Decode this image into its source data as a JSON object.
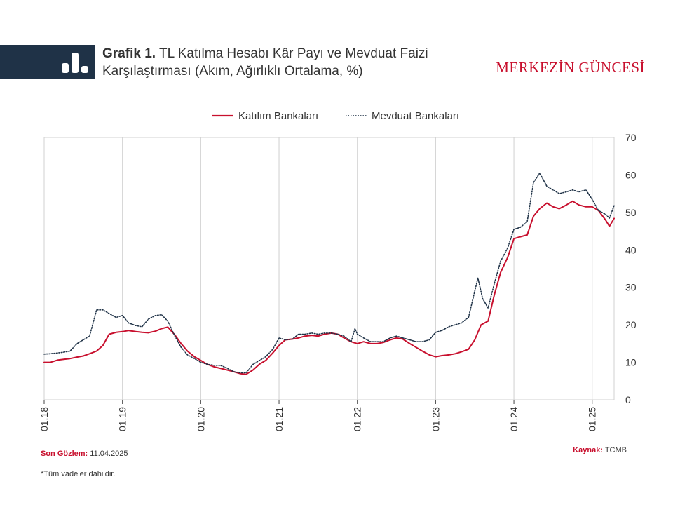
{
  "header": {
    "title_prefix": "Grafik 1.",
    "title_text": "TL Katılma Hesabı Kâr Payı ve Mevduat Faizi Karşılaştırması (Akım, Ağırlıklı Ortalama, %)",
    "brand": "MERKEZİN GÜNCESİ",
    "band_color": "#1f3247",
    "accent_color": "#c8102e"
  },
  "chart_data": {
    "type": "line",
    "title": "",
    "xlabel": "",
    "ylabel": "",
    "x_tick_labels": [
      "01.18",
      "01.19",
      "01.20",
      "01.21",
      "01.22",
      "01.23",
      "01.24",
      "01.25"
    ],
    "x_range": [
      2018.0,
      2025.28
    ],
    "ylim": [
      0,
      70
    ],
    "y_ticks": [
      0,
      10,
      20,
      30,
      40,
      50,
      60,
      70
    ],
    "y_axis_side": "right",
    "grid": "vertical",
    "legend_position": "top-center",
    "series": [
      {
        "name": "Katılım Bankaları",
        "color": "#c8102e",
        "style": "solid",
        "points": [
          [
            2018.0,
            10.0
          ],
          [
            2018.08,
            10.0
          ],
          [
            2018.17,
            10.6
          ],
          [
            2018.25,
            10.8
          ],
          [
            2018.33,
            11.0
          ],
          [
            2018.42,
            11.4
          ],
          [
            2018.5,
            11.7
          ],
          [
            2018.58,
            12.3
          ],
          [
            2018.67,
            13.0
          ],
          [
            2018.75,
            14.5
          ],
          [
            2018.83,
            17.5
          ],
          [
            2018.92,
            18.0
          ],
          [
            2019.0,
            18.2
          ],
          [
            2019.08,
            18.5
          ],
          [
            2019.17,
            18.2
          ],
          [
            2019.25,
            18.0
          ],
          [
            2019.33,
            17.9
          ],
          [
            2019.42,
            18.3
          ],
          [
            2019.5,
            19.0
          ],
          [
            2019.58,
            19.4
          ],
          [
            2019.67,
            17.3
          ],
          [
            2019.75,
            15.0
          ],
          [
            2019.83,
            13.0
          ],
          [
            2019.92,
            11.5
          ],
          [
            2020.0,
            10.5
          ],
          [
            2020.08,
            9.5
          ],
          [
            2020.17,
            8.8
          ],
          [
            2020.25,
            8.4
          ],
          [
            2020.33,
            8.0
          ],
          [
            2020.42,
            7.5
          ],
          [
            2020.5,
            7.0
          ],
          [
            2020.58,
            6.8
          ],
          [
            2020.67,
            8.0
          ],
          [
            2020.75,
            9.5
          ],
          [
            2020.83,
            10.5
          ],
          [
            2020.92,
            12.5
          ],
          [
            2021.0,
            14.5
          ],
          [
            2021.08,
            16.0
          ],
          [
            2021.17,
            16.2
          ],
          [
            2021.25,
            16.5
          ],
          [
            2021.33,
            17.0
          ],
          [
            2021.42,
            17.2
          ],
          [
            2021.5,
            17.0
          ],
          [
            2021.58,
            17.5
          ],
          [
            2021.67,
            17.8
          ],
          [
            2021.75,
            17.5
          ],
          [
            2021.83,
            16.5
          ],
          [
            2021.92,
            15.5
          ],
          [
            2022.0,
            15.0
          ],
          [
            2022.08,
            15.5
          ],
          [
            2022.17,
            15.0
          ],
          [
            2022.25,
            15.0
          ],
          [
            2022.33,
            15.3
          ],
          [
            2022.42,
            16.0
          ],
          [
            2022.5,
            16.5
          ],
          [
            2022.58,
            16.2
          ],
          [
            2022.67,
            15.0
          ],
          [
            2022.75,
            14.0
          ],
          [
            2022.83,
            13.0
          ],
          [
            2022.92,
            12.0
          ],
          [
            2023.0,
            11.5
          ],
          [
            2023.08,
            11.8
          ],
          [
            2023.17,
            12.0
          ],
          [
            2023.25,
            12.3
          ],
          [
            2023.33,
            12.8
          ],
          [
            2023.42,
            13.5
          ],
          [
            2023.5,
            16.0
          ],
          [
            2023.58,
            20.0
          ],
          [
            2023.67,
            21.0
          ],
          [
            2023.75,
            28.0
          ],
          [
            2023.83,
            34.0
          ],
          [
            2023.92,
            38.0
          ],
          [
            2024.0,
            43.0
          ],
          [
            2024.08,
            43.5
          ],
          [
            2024.17,
            44.0
          ],
          [
            2024.25,
            49.0
          ],
          [
            2024.33,
            51.0
          ],
          [
            2024.42,
            52.5
          ],
          [
            2024.5,
            51.5
          ],
          [
            2024.58,
            51.0
          ],
          [
            2024.67,
            52.0
          ],
          [
            2024.75,
            53.0
          ],
          [
            2024.83,
            52.0
          ],
          [
            2024.92,
            51.5
          ],
          [
            2025.0,
            51.5
          ],
          [
            2025.08,
            50.5
          ],
          [
            2025.17,
            48.0
          ],
          [
            2025.22,
            46.3
          ],
          [
            2025.28,
            48.4
          ]
        ]
      },
      {
        "name": "Mevduat Bankaları",
        "color": "#1f3247",
        "style": "dotted",
        "points": [
          [
            2018.0,
            12.2
          ],
          [
            2018.08,
            12.3
          ],
          [
            2018.17,
            12.5
          ],
          [
            2018.25,
            12.7
          ],
          [
            2018.33,
            13.0
          ],
          [
            2018.42,
            15.0
          ],
          [
            2018.5,
            16.0
          ],
          [
            2018.58,
            17.0
          ],
          [
            2018.67,
            24.0
          ],
          [
            2018.75,
            24.0
          ],
          [
            2018.83,
            23.0
          ],
          [
            2018.92,
            22.0
          ],
          [
            2019.0,
            22.5
          ],
          [
            2019.08,
            20.5
          ],
          [
            2019.17,
            19.8
          ],
          [
            2019.25,
            19.5
          ],
          [
            2019.33,
            21.5
          ],
          [
            2019.42,
            22.5
          ],
          [
            2019.5,
            22.7
          ],
          [
            2019.58,
            21.0
          ],
          [
            2019.67,
            17.0
          ],
          [
            2019.75,
            14.0
          ],
          [
            2019.83,
            12.0
          ],
          [
            2019.92,
            11.0
          ],
          [
            2020.0,
            10.0
          ],
          [
            2020.08,
            9.5
          ],
          [
            2020.17,
            9.2
          ],
          [
            2020.25,
            9.2
          ],
          [
            2020.33,
            8.5
          ],
          [
            2020.42,
            7.5
          ],
          [
            2020.5,
            7.2
          ],
          [
            2020.58,
            7.2
          ],
          [
            2020.67,
            9.5
          ],
          [
            2020.75,
            10.5
          ],
          [
            2020.83,
            11.5
          ],
          [
            2020.92,
            13.5
          ],
          [
            2021.0,
            16.5
          ],
          [
            2021.08,
            16.0
          ],
          [
            2021.17,
            16.2
          ],
          [
            2021.25,
            17.5
          ],
          [
            2021.33,
            17.5
          ],
          [
            2021.42,
            17.8
          ],
          [
            2021.5,
            17.5
          ],
          [
            2021.58,
            17.8
          ],
          [
            2021.67,
            17.8
          ],
          [
            2021.75,
            17.5
          ],
          [
            2021.83,
            17.0
          ],
          [
            2021.92,
            15.5
          ],
          [
            2021.97,
            19.0
          ],
          [
            2022.0,
            17.5
          ],
          [
            2022.08,
            16.5
          ],
          [
            2022.17,
            15.5
          ],
          [
            2022.25,
            15.5
          ],
          [
            2022.33,
            15.5
          ],
          [
            2022.42,
            16.5
          ],
          [
            2022.5,
            17.0
          ],
          [
            2022.58,
            16.5
          ],
          [
            2022.67,
            16.0
          ],
          [
            2022.75,
            15.5
          ],
          [
            2022.83,
            15.5
          ],
          [
            2022.92,
            16.0
          ],
          [
            2023.0,
            18.0
          ],
          [
            2023.08,
            18.5
          ],
          [
            2023.17,
            19.5
          ],
          [
            2023.25,
            20.0
          ],
          [
            2023.33,
            20.5
          ],
          [
            2023.42,
            22.0
          ],
          [
            2023.5,
            29.0
          ],
          [
            2023.54,
            32.5
          ],
          [
            2023.6,
            27.0
          ],
          [
            2023.67,
            24.5
          ],
          [
            2023.75,
            31.0
          ],
          [
            2023.83,
            37.0
          ],
          [
            2023.92,
            40.5
          ],
          [
            2024.0,
            45.5
          ],
          [
            2024.08,
            46.0
          ],
          [
            2024.17,
            47.5
          ],
          [
            2024.25,
            58.0
          ],
          [
            2024.33,
            60.5
          ],
          [
            2024.42,
            57.0
          ],
          [
            2024.5,
            56.0
          ],
          [
            2024.58,
            55.0
          ],
          [
            2024.67,
            55.5
          ],
          [
            2024.75,
            56.0
          ],
          [
            2024.83,
            55.5
          ],
          [
            2024.92,
            56.0
          ],
          [
            2025.0,
            53.5
          ],
          [
            2025.08,
            50.5
          ],
          [
            2025.17,
            49.5
          ],
          [
            2025.22,
            48.5
          ],
          [
            2025.28,
            51.8
          ]
        ]
      }
    ]
  },
  "footer": {
    "observation_label": "Son Gözlem:",
    "observation_value": "11.04.2025",
    "source_label": "Kaynak:",
    "source_value": "TCMB",
    "footnote": "*Tüm vadeler dahildir."
  }
}
